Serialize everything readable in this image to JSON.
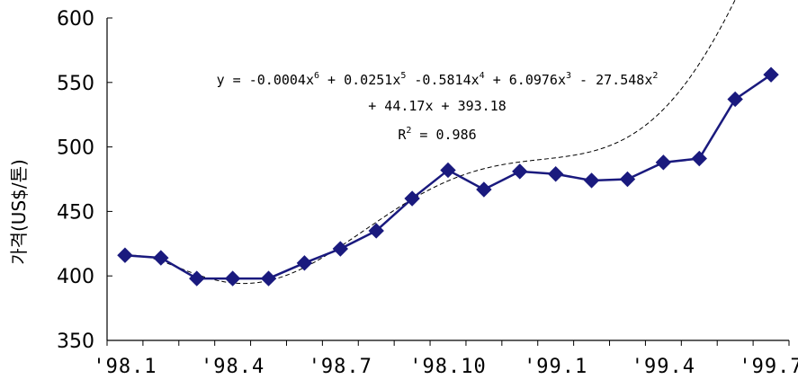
{
  "chart_data": {
    "type": "line",
    "ylabel": "가격(US$/톤)",
    "xlabel": "",
    "ylim": [
      350,
      600
    ],
    "yticks": [
      350,
      400,
      450,
      500,
      550,
      600
    ],
    "x_tick_labels": [
      "'98.1",
      "'98.4",
      "'98.7",
      "'98.10",
      "'99.1",
      "'99.4",
      "'99.7"
    ],
    "x": [
      "'98.1",
      "'98.2",
      "'98.3",
      "'98.4",
      "'98.5",
      "'98.6",
      "'98.7",
      "'98.8",
      "'98.9",
      "'98.10",
      "'98.11",
      "'98.12",
      "'99.1",
      "'99.2",
      "'99.3",
      "'99.4",
      "'99.5",
      "'99.6",
      "'99.7"
    ],
    "series": [
      {
        "marker": "diamond",
        "color": "#1a1a7e",
        "values": [
          416,
          414,
          398,
          398,
          398,
          410,
          421,
          435,
          460,
          482,
          467,
          481,
          479,
          474,
          475,
          488,
          491,
          537,
          556
        ]
      }
    ],
    "trendline": {
      "style": "dashed",
      "color": "#000000",
      "coefficients": [
        -0.0004,
        0.0251,
        -0.5814,
        6.0976,
        -27.548,
        44.17,
        393.18
      ],
      "equation_line1": "y = -0.0004x6 + 0.0251x5 -0.5814x4 + 6.0976x3 - 27.548x2",
      "equation_line2": "+ 44.17x + 393.18",
      "r_squared": "R2 = 0.986"
    },
    "grid": false,
    "legend": "none"
  }
}
